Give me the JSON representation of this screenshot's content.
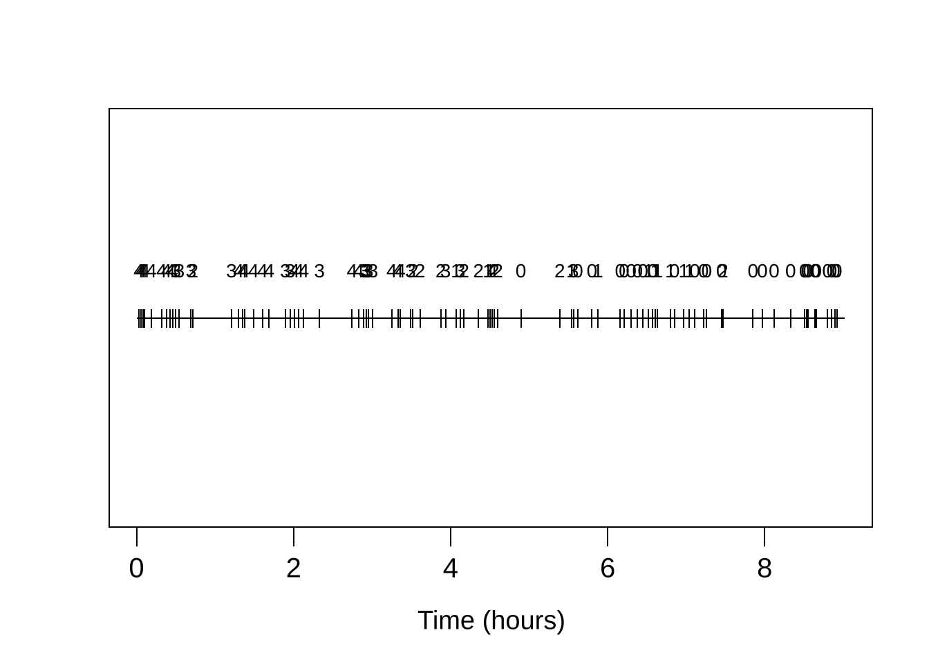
{
  "figure": {
    "background_color": "#ffffff",
    "foreground_color": "#000000"
  },
  "chart_data": {
    "type": "scatter",
    "subtype": "marked-event-rug-timeline",
    "title": "",
    "xlabel": "Time (hours)",
    "ylabel": "",
    "xlim": [
      0,
      9.02
    ],
    "x_ticks": [
      0,
      2,
      4,
      6,
      8
    ],
    "grid": false,
    "legend": "none",
    "mark_label_position": "above-each-event-tick",
    "events": [
      {
        "t": 0.03,
        "mark": 4
      },
      {
        "t": 0.055,
        "mark": 4
      },
      {
        "t": 0.08,
        "mark": 4
      },
      {
        "t": 0.105,
        "mark": 4
      },
      {
        "t": 0.19,
        "mark": 4
      },
      {
        "t": 0.32,
        "mark": 4
      },
      {
        "t": 0.38,
        "mark": 4
      },
      {
        "t": 0.43,
        "mark": 4
      },
      {
        "t": 0.465,
        "mark": 4
      },
      {
        "t": 0.5,
        "mark": 3
      },
      {
        "t": 0.545,
        "mark": 3
      },
      {
        "t": 0.695,
        "mark": 3
      },
      {
        "t": 0.72,
        "mark": 2
      },
      {
        "t": 1.21,
        "mark": 3
      },
      {
        "t": 1.3,
        "mark": 4
      },
      {
        "t": 1.35,
        "mark": 4
      },
      {
        "t": 1.375,
        "mark": 4
      },
      {
        "t": 1.49,
        "mark": 4
      },
      {
        "t": 1.605,
        "mark": 4
      },
      {
        "t": 1.69,
        "mark": 4
      },
      {
        "t": 1.895,
        "mark": 3
      },
      {
        "t": 1.955,
        "mark": 3
      },
      {
        "t": 2.01,
        "mark": 4
      },
      {
        "t": 2.065,
        "mark": 4
      },
      {
        "t": 2.13,
        "mark": 4
      },
      {
        "t": 2.33,
        "mark": 3
      },
      {
        "t": 2.745,
        "mark": 4
      },
      {
        "t": 2.83,
        "mark": 4
      },
      {
        "t": 2.895,
        "mark": 3
      },
      {
        "t": 2.925,
        "mark": 3
      },
      {
        "t": 2.95,
        "mark": 3
      },
      {
        "t": 3.01,
        "mark": 3
      },
      {
        "t": 3.25,
        "mark": 4
      },
      {
        "t": 3.33,
        "mark": 4
      },
      {
        "t": 3.36,
        "mark": 4
      },
      {
        "t": 3.49,
        "mark": 3
      },
      {
        "t": 3.52,
        "mark": 2
      },
      {
        "t": 3.61,
        "mark": 2
      },
      {
        "t": 3.875,
        "mark": 2
      },
      {
        "t": 3.935,
        "mark": 3
      },
      {
        "t": 4.07,
        "mark": 1
      },
      {
        "t": 4.12,
        "mark": 3
      },
      {
        "t": 4.17,
        "mark": 2
      },
      {
        "t": 4.355,
        "mark": 2
      },
      {
        "t": 4.475,
        "mark": 1
      },
      {
        "t": 4.505,
        "mark": 1
      },
      {
        "t": 4.53,
        "mark": 4
      },
      {
        "t": 4.555,
        "mark": 2
      },
      {
        "t": 4.6,
        "mark": 2
      },
      {
        "t": 4.895,
        "mark": 0
      },
      {
        "t": 5.39,
        "mark": 2
      },
      {
        "t": 5.54,
        "mark": 1
      },
      {
        "t": 5.565,
        "mark": 3
      },
      {
        "t": 5.62,
        "mark": 0
      },
      {
        "t": 5.8,
        "mark": 0
      },
      {
        "t": 5.875,
        "mark": 1
      },
      {
        "t": 6.16,
        "mark": 0
      },
      {
        "t": 6.21,
        "mark": 0
      },
      {
        "t": 6.3,
        "mark": 0
      },
      {
        "t": 6.38,
        "mark": 0
      },
      {
        "t": 6.45,
        "mark": 0
      },
      {
        "t": 6.52,
        "mark": 1
      },
      {
        "t": 6.575,
        "mark": 0
      },
      {
        "t": 6.61,
        "mark": 1
      },
      {
        "t": 6.635,
        "mark": 1
      },
      {
        "t": 6.8,
        "mark": 1
      },
      {
        "t": 6.85,
        "mark": 0
      },
      {
        "t": 6.97,
        "mark": 1
      },
      {
        "t": 7.04,
        "mark": 1
      },
      {
        "t": 7.11,
        "mark": 0
      },
      {
        "t": 7.22,
        "mark": 0
      },
      {
        "t": 7.26,
        "mark": 0
      },
      {
        "t": 7.45,
        "mark": 0
      },
      {
        "t": 7.47,
        "mark": 2
      },
      {
        "t": 7.85,
        "mark": 0
      },
      {
        "t": 7.97,
        "mark": 0
      },
      {
        "t": 8.12,
        "mark": 0
      },
      {
        "t": 8.33,
        "mark": 0
      },
      {
        "t": 8.505,
        "mark": 0
      },
      {
        "t": 8.53,
        "mark": 0
      },
      {
        "t": 8.555,
        "mark": 0
      },
      {
        "t": 8.64,
        "mark": 0
      },
      {
        "t": 8.66,
        "mark": 0
      },
      {
        "t": 8.8,
        "mark": 0
      },
      {
        "t": 8.855,
        "mark": 0
      },
      {
        "t": 8.895,
        "mark": 0
      },
      {
        "t": 8.92,
        "mark": 0
      }
    ]
  }
}
